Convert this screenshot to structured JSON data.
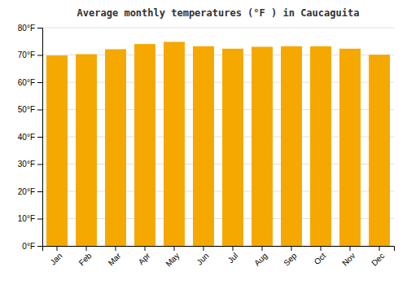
{
  "chart_data": {
    "type": "bar",
    "title": "Average monthly temperatures (°F ) in Caucaguita",
    "categories": [
      "Jan",
      "Feb",
      "Mar",
      "Apr",
      "May",
      "Jun",
      "Jul",
      "Aug",
      "Sep",
      "Oct",
      "Nov",
      "Dec"
    ],
    "values": [
      69.8,
      70.3,
      72.1,
      74.0,
      74.8,
      73.2,
      72.3,
      73.0,
      73.2,
      73.2,
      72.3,
      70.1
    ],
    "color": "#F5A800",
    "ylim": [
      0,
      80
    ],
    "yticks": [
      {
        "value": 0,
        "label": "0°F"
      },
      {
        "value": 10,
        "label": "10°F"
      },
      {
        "value": 20,
        "label": "20°F"
      },
      {
        "value": 30,
        "label": "30°F"
      },
      {
        "value": 40,
        "label": "40°F"
      },
      {
        "value": 50,
        "label": "50°F"
      },
      {
        "value": 60,
        "label": "60°F"
      },
      {
        "value": 70,
        "label": "70°F"
      },
      {
        "value": 80,
        "label": "80°F"
      }
    ],
    "grid": true
  }
}
